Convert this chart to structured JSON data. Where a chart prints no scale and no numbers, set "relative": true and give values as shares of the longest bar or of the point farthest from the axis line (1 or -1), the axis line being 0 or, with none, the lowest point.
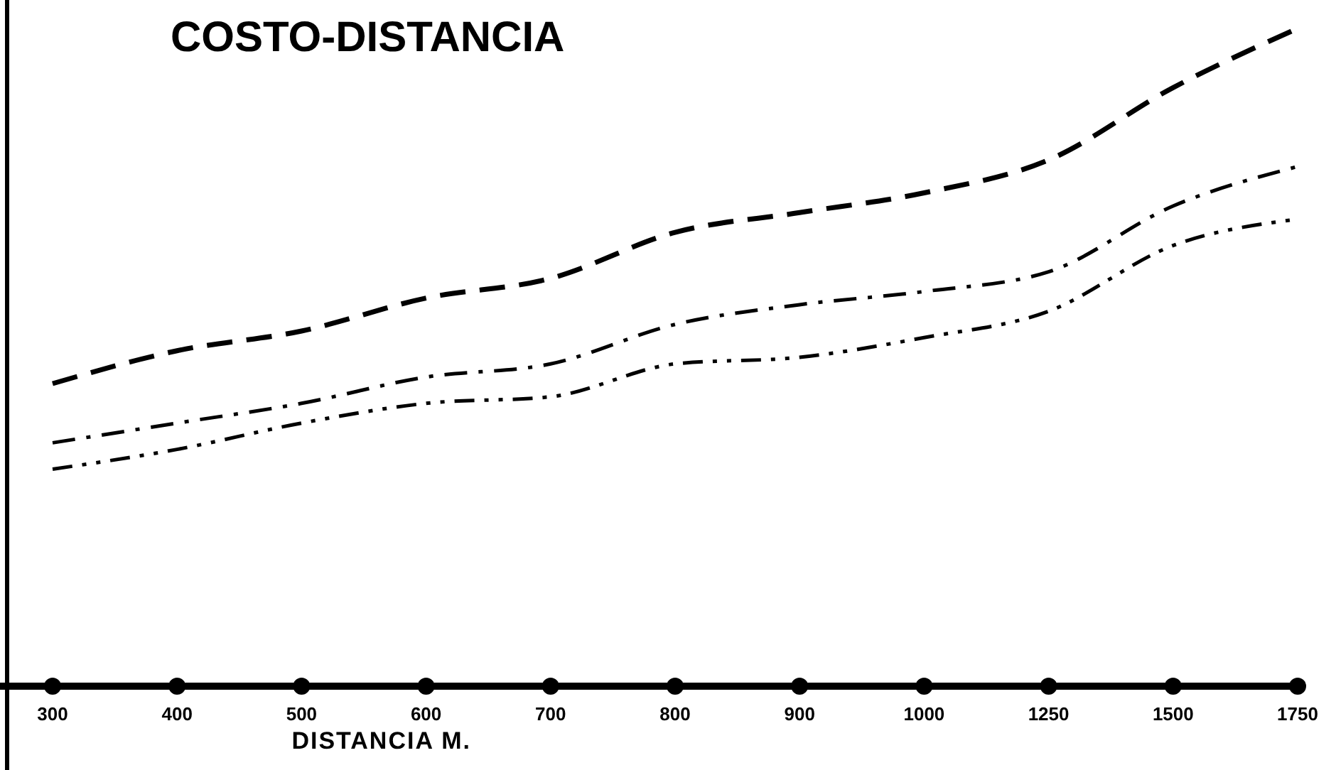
{
  "chart_data": {
    "type": "line",
    "title": "COSTO-DISTANCIA",
    "xlabel": "DISTANCIA  M.",
    "relative": true,
    "marker": "none",
    "categories": [
      "300",
      "400",
      "500",
      "600",
      "700",
      "800",
      "900",
      "1000",
      "1250",
      "1500",
      "1750"
    ],
    "series": [
      {
        "color": "#000000",
        "line_style": "dashed",
        "values": [
          0.46,
          0.51,
          0.54,
          0.59,
          0.62,
          0.69,
          0.72,
          0.75,
          0.8,
          0.91,
          1
        ]
      },
      {
        "color": "#000000",
        "line_style": "dashdot",
        "values": [
          0.37,
          0.4,
          0.43,
          0.47,
          0.49,
          0.55,
          0.58,
          0.6,
          0.63,
          0.73,
          0.79
        ]
      },
      {
        "color": "#000000",
        "line_style": "dashdotdot",
        "values": [
          0.33,
          0.36,
          0.4,
          0.43,
          0.44,
          0.49,
          0.5,
          0.53,
          0.57,
          0.67,
          0.71
        ]
      }
    ]
  }
}
